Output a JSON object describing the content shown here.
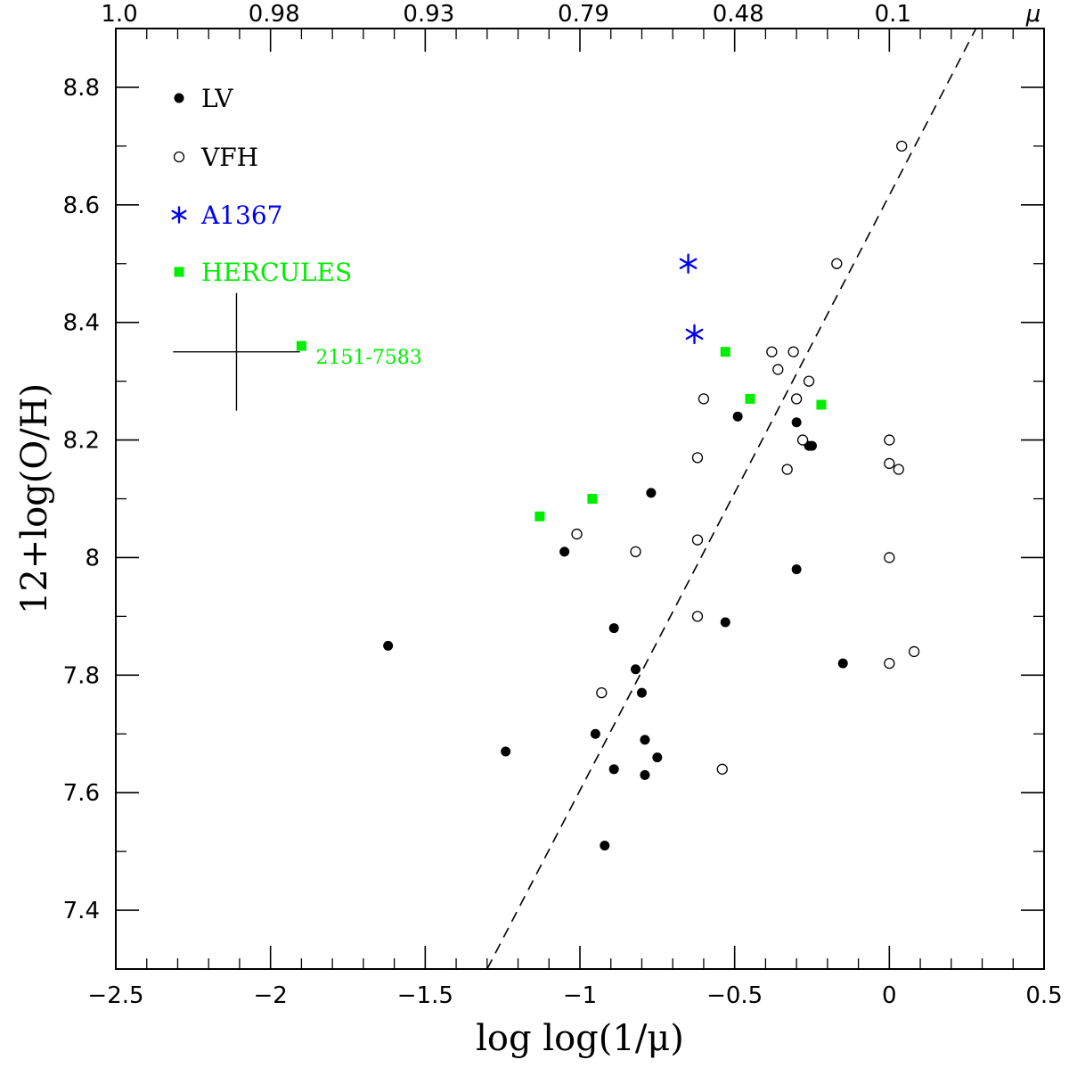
{
  "chart_data": {
    "type": "scatter",
    "xlabel": "log log(1/μ)",
    "ylabel": "12+log(O/H)",
    "top_axis_label": "μ",
    "xlim": [
      -2.5,
      0.5
    ],
    "ylim": [
      7.3,
      8.9
    ],
    "x_ticks": [
      -2.5,
      -2,
      -1.5,
      -1,
      -0.5,
      0,
      0.5
    ],
    "x_tick_labels": [
      "−2.5",
      "−2",
      "−1.5",
      "−1",
      "−0.5",
      "0",
      "0.5"
    ],
    "y_ticks": [
      7.4,
      7.6,
      7.8,
      8,
      8.2,
      8.4,
      8.6,
      8.8
    ],
    "y_tick_labels": [
      "7.4",
      "7.6",
      "7.8",
      "8",
      "8.2",
      "8.4",
      "8.6",
      "8.8"
    ],
    "top_ticks": [
      {
        "label": "1.0",
        "x": -2.5
      },
      {
        "label": "0.98",
        "x": -2.0
      },
      {
        "label": "0.93",
        "x": -1.5
      },
      {
        "label": "0.79",
        "x": -1.0
      },
      {
        "label": "0.48",
        "x": -0.5
      },
      {
        "label": "0.1",
        "x": 0.0
      }
    ],
    "legend_position": "top-left",
    "series": [
      {
        "name": "LV",
        "marker": "filled-circle",
        "color": "#000000",
        "points": [
          [
            -1.62,
            7.85
          ],
          [
            -1.24,
            7.67
          ],
          [
            -1.05,
            8.01
          ],
          [
            -0.95,
            7.7
          ],
          [
            -0.92,
            7.51
          ],
          [
            -0.89,
            7.88
          ],
          [
            -0.89,
            7.64
          ],
          [
            -0.82,
            7.81
          ],
          [
            -0.8,
            7.77
          ],
          [
            -0.79,
            7.69
          ],
          [
            -0.79,
            7.63
          ],
          [
            -0.77,
            8.11
          ],
          [
            -0.75,
            7.66
          ],
          [
            -0.53,
            7.89
          ],
          [
            -0.49,
            8.24
          ],
          [
            -0.3,
            8.23
          ],
          [
            -0.3,
            7.98
          ],
          [
            -0.26,
            8.19
          ],
          [
            -0.25,
            8.19
          ],
          [
            -0.15,
            7.82
          ]
        ]
      },
      {
        "name": "VFH",
        "marker": "open-circle",
        "color": "#000000",
        "points": [
          [
            -1.01,
            8.04
          ],
          [
            -0.93,
            7.77
          ],
          [
            -0.82,
            8.01
          ],
          [
            -0.62,
            8.17
          ],
          [
            -0.62,
            8.03
          ],
          [
            -0.62,
            7.9
          ],
          [
            -0.6,
            8.27
          ],
          [
            -0.54,
            7.64
          ],
          [
            -0.38,
            8.35
          ],
          [
            -0.36,
            8.32
          ],
          [
            -0.33,
            8.15
          ],
          [
            -0.31,
            8.35
          ],
          [
            -0.3,
            8.27
          ],
          [
            -0.28,
            8.2
          ],
          [
            -0.26,
            8.3
          ],
          [
            -0.17,
            8.5
          ],
          [
            0.0,
            8.2
          ],
          [
            0.0,
            8.16
          ],
          [
            0.0,
            8.0
          ],
          [
            0.0,
            7.82
          ],
          [
            0.03,
            8.15
          ],
          [
            0.04,
            8.7
          ],
          [
            0.08,
            7.84
          ]
        ]
      },
      {
        "name": "A1367",
        "marker": "asterisk",
        "color": "#0000ee",
        "points": [
          [
            -0.65,
            8.5
          ],
          [
            -0.63,
            8.38
          ]
        ]
      },
      {
        "name": "HERCULES",
        "marker": "filled-square",
        "color": "#00ee00",
        "points": [
          [
            -1.9,
            8.36
          ],
          [
            -1.13,
            8.07
          ],
          [
            -0.96,
            8.1
          ],
          [
            -0.53,
            8.35
          ],
          [
            -0.45,
            8.27
          ],
          [
            -0.22,
            8.26
          ]
        ]
      }
    ],
    "annotations": [
      {
        "text": "2151-7583",
        "x": -1.9,
        "y": 8.36,
        "color": "#00ee00"
      }
    ],
    "fit_line": {
      "style": "dashed",
      "color": "#000000",
      "x1": -1.3,
      "y1": 7.3,
      "x2": 0.28,
      "y2": 8.9
    },
    "error_bar": {
      "x": -2.11,
      "y": 8.35,
      "dx": 0.39,
      "dy": 0.1
    }
  }
}
